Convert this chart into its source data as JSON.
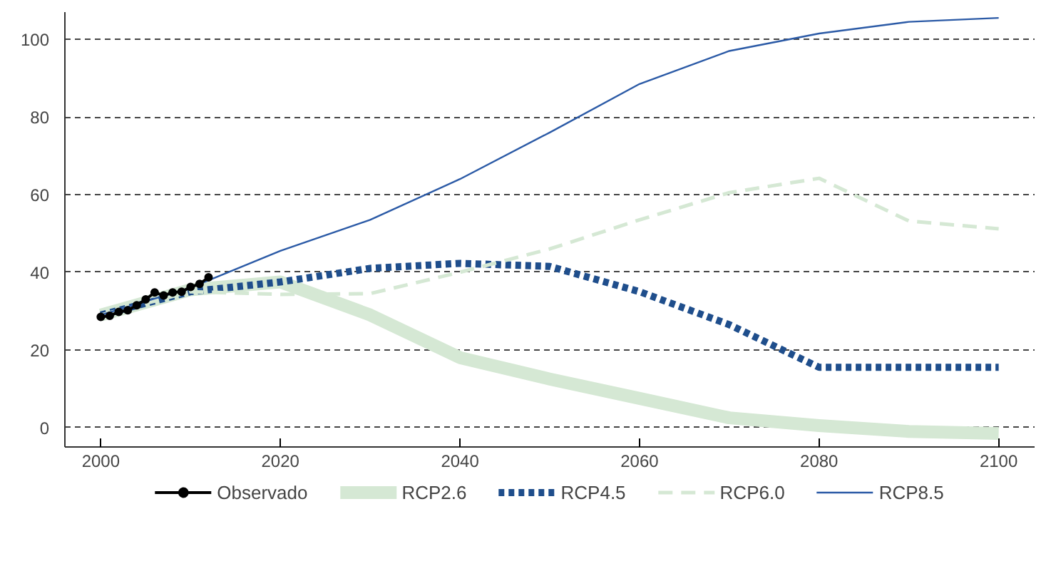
{
  "chart_data": {
    "type": "line",
    "xlim": [
      1996,
      2104
    ],
    "xticks": [
      2000,
      2020,
      2040,
      2060,
      2080,
      2100
    ],
    "ylim": [
      -5,
      107
    ],
    "yticks": [
      0,
      20,
      40,
      60,
      80,
      100
    ],
    "grid": "y",
    "legend": "bottom",
    "series": [
      {
        "name": "Observado",
        "color": "#000000",
        "marker": "circle",
        "line_style": "solid",
        "x": [
          2000,
          2001,
          2002,
          2003,
          2004,
          2005,
          2006,
          2007,
          2008,
          2009,
          2010,
          2011,
          2012
        ],
        "values": [
          28.5,
          28.8,
          29.8,
          30.2,
          31.5,
          33,
          34.8,
          34,
          34.8,
          35,
          36.2,
          37,
          38.7
        ]
      },
      {
        "name": "RCP2.6",
        "color": "#d5e8d4",
        "marker": "none",
        "line_style": "solid",
        "x": [
          2000,
          2010,
          2020,
          2030,
          2040,
          2050,
          2060,
          2070,
          2080,
          2090,
          2100
        ],
        "values": [
          29,
          35.5,
          37.5,
          29,
          18,
          12.5,
          7.5,
          2.5,
          0.5,
          -1,
          -1.5
        ]
      },
      {
        "name": "RCP4.5",
        "color": "#1f4e8c",
        "marker": "none",
        "line_style": "dotted",
        "x": [
          2000,
          2010,
          2020,
          2030,
          2040,
          2050,
          2060,
          2070,
          2080,
          2090,
          2100
        ],
        "values": [
          29,
          35,
          37.5,
          41,
          42.3,
          41.5,
          35,
          26.5,
          15.5,
          15.5,
          15.5
        ]
      },
      {
        "name": "RCP6.0",
        "color": "#d5e8d4",
        "marker": "none",
        "line_style": "dashed",
        "x": [
          2000,
          2010,
          2020,
          2030,
          2040,
          2050,
          2060,
          2070,
          2080,
          2090,
          2100
        ],
        "values": [
          29,
          35,
          34.3,
          34.5,
          40,
          46,
          53.5,
          60.5,
          64.2,
          53.2,
          51.2
        ]
      },
      {
        "name": "RCP8.5",
        "color": "#2b5aa6",
        "marker": "none",
        "line_style": "solid",
        "x": [
          2000,
          2010,
          2020,
          2030,
          2040,
          2050,
          2060,
          2070,
          2080,
          2090,
          2100
        ],
        "values": [
          29,
          36,
          45.5,
          53.5,
          64,
          76,
          88.5,
          97,
          101.5,
          104.5,
          105.5
        ]
      }
    ]
  }
}
